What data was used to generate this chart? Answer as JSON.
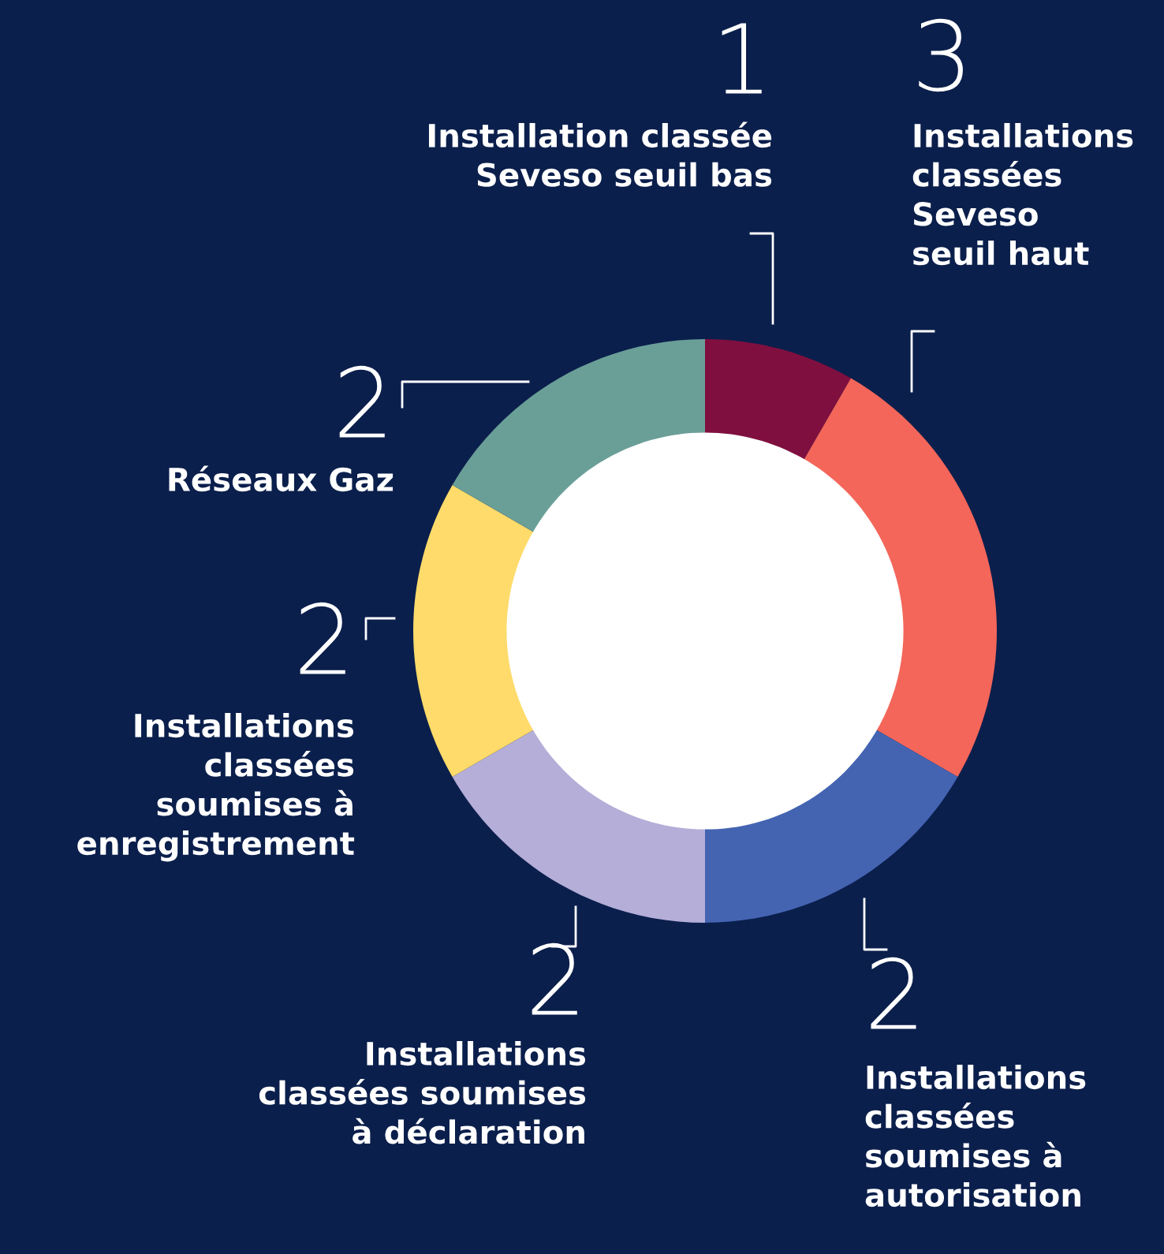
{
  "chart_data": {
    "type": "donut",
    "categories": [
      "Installation classée\nSeveso seuil bas",
      "Installations\nclassées\nSeveso\nseuil haut",
      "Installations\nclassées\nsoumises à\nautorisation",
      "Installations\nclassées soumises\nà déclaration",
      "Installations\nclassées\nsoumises à\nenregistrement",
      "Réseaux Gaz"
    ],
    "values": [
      1,
      3,
      2,
      2,
      2,
      2
    ],
    "colors": [
      "#7f0f3f",
      "#f4665a",
      "#4464b2",
      "#b4aed8",
      "#fedb6a",
      "#6a9f98"
    ],
    "data_labels": true
  }
}
